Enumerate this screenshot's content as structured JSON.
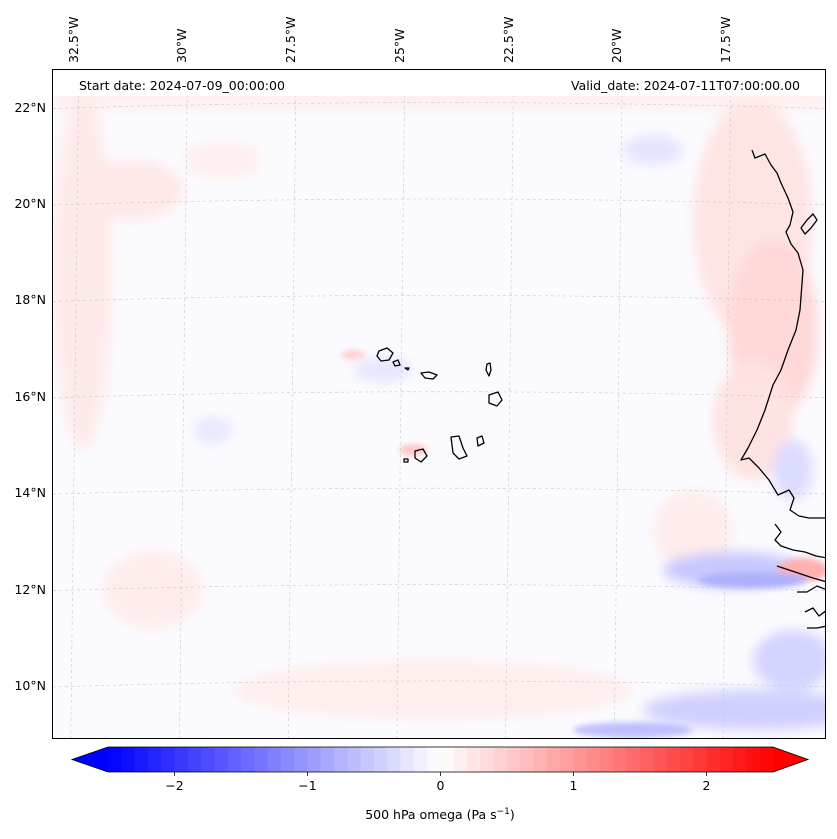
{
  "map": {
    "start_date_text": "Start date: 2024-07-09_00:00:00",
    "valid_date_text": "Valid_date: 2024-07-11T07:00:00.00",
    "variable": "500 hPa omega",
    "longitude_labels": [
      {
        "lon": -32.5,
        "label": "32.5°W"
      },
      {
        "lon": -30.0,
        "label": "30°W"
      },
      {
        "lon": -27.5,
        "label": "27.5°W"
      },
      {
        "lon": -25.0,
        "label": "25°W"
      },
      {
        "lon": -22.5,
        "label": "22.5°W"
      },
      {
        "lon": -20.0,
        "label": "20°W"
      },
      {
        "lon": -17.5,
        "label": "17.5°W"
      }
    ],
    "latitude_labels": [
      {
        "lat": 22,
        "label": "22°N"
      },
      {
        "lat": 20,
        "label": "20°N"
      },
      {
        "lat": 18,
        "label": "18°N"
      },
      {
        "lat": 16,
        "label": "16°N"
      },
      {
        "lat": 14,
        "label": "14°N"
      },
      {
        "lat": 12,
        "label": "12°N"
      },
      {
        "lat": 10,
        "label": "10°N"
      }
    ],
    "extent": {
      "lon_min": -33.0,
      "lon_max": -15.2,
      "lat_min": 8.9,
      "lat_max": 22.8
    }
  },
  "colorbar": {
    "min": -2.5,
    "max": 2.5,
    "ticks": [
      {
        "value": -2,
        "label": "−2"
      },
      {
        "value": -1,
        "label": "−1"
      },
      {
        "value": 0,
        "label": "0"
      },
      {
        "value": 1,
        "label": "1"
      },
      {
        "value": 2,
        "label": "2"
      }
    ],
    "label": "500 hPa omega (Pa s",
    "label_superscript": "−1",
    "label_suffix": ")",
    "low_color": "#0000ff",
    "mid_color": "#ffffff",
    "high_color": "#ff0000"
  }
}
